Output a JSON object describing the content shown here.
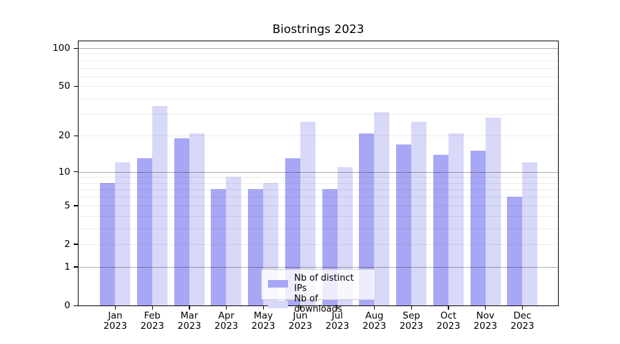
{
  "title": "Biostrings 2023",
  "legend": {
    "items": [
      {
        "label": "Nb of distinct IPs",
        "color": "#a7a7f5"
      },
      {
        "label": "Nb of downloads",
        "color": "#d8d8f9"
      }
    ]
  },
  "chart_data": {
    "type": "bar",
    "title": "Biostrings 2023",
    "categories": [
      "Jan 2023",
      "Feb 2023",
      "Mar 2023",
      "Apr 2023",
      "May 2023",
      "Jun 2023",
      "Jul 2023",
      "Aug 2023",
      "Sep 2023",
      "Oct 2023",
      "Nov 2023",
      "Dec 2023"
    ],
    "series": [
      {
        "name": "Nb of distinct IPs",
        "color": "#a7a7f5",
        "values": [
          8,
          13,
          19,
          7,
          7,
          13,
          7,
          21,
          17,
          14,
          15,
          6
        ]
      },
      {
        "name": "Nb of downloads",
        "color": "#d8d8f9",
        "values": [
          12,
          35,
          21,
          9,
          8,
          26,
          11,
          31,
          26,
          21,
          28,
          12
        ]
      }
    ],
    "xlabel": "",
    "ylabel": "",
    "yscale": "log1p",
    "ylim": [
      0,
      113
    ],
    "yticks": [
      0,
      1,
      2,
      5,
      10,
      20,
      50,
      100
    ],
    "grid_minor": [
      2,
      3,
      4,
      5,
      6,
      7,
      8,
      9,
      20,
      30,
      40,
      50,
      60,
      70,
      80,
      90
    ],
    "grid_major": [
      1,
      10,
      100
    ],
    "legend_position": "lower center",
    "grid": "on"
  }
}
